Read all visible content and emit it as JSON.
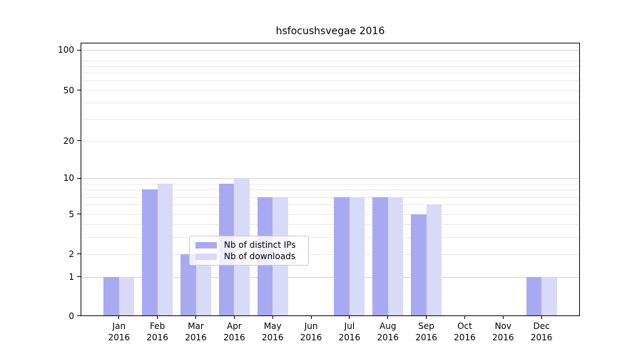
{
  "chart_data": {
    "type": "bar",
    "title": "hsfocushsvegae 2016",
    "categories": [
      "Jan",
      "Feb",
      "Mar",
      "Apr",
      "May",
      "Jun",
      "Jul",
      "Aug",
      "Sep",
      "Oct",
      "Nov",
      "Dec"
    ],
    "x_tick_year": "2016",
    "series": [
      {
        "name": "Nb of distinct IPs",
        "color": "#a9a9f2",
        "values": [
          1,
          8,
          2,
          9,
          7,
          0,
          7,
          7,
          5,
          0,
          0,
          1
        ]
      },
      {
        "name": "Nb of downloads",
        "color": "#d9d9f8",
        "values": [
          1,
          9,
          2,
          10,
          7,
          0,
          7,
          7,
          6,
          0,
          0,
          1
        ]
      }
    ],
    "yticks": [
      0,
      1,
      2,
      5,
      10,
      20,
      50,
      100
    ],
    "ylim": [
      0,
      115
    ],
    "yscale": "symlog",
    "grid": true,
    "legend_position": "lower-center",
    "style": {
      "major_grid_color": "#d4d4d4",
      "minor_grid_color": "#ebebeb",
      "spine_color": "#000000",
      "legend_border_color": "#cccccc",
      "background": "#ffffff"
    }
  }
}
